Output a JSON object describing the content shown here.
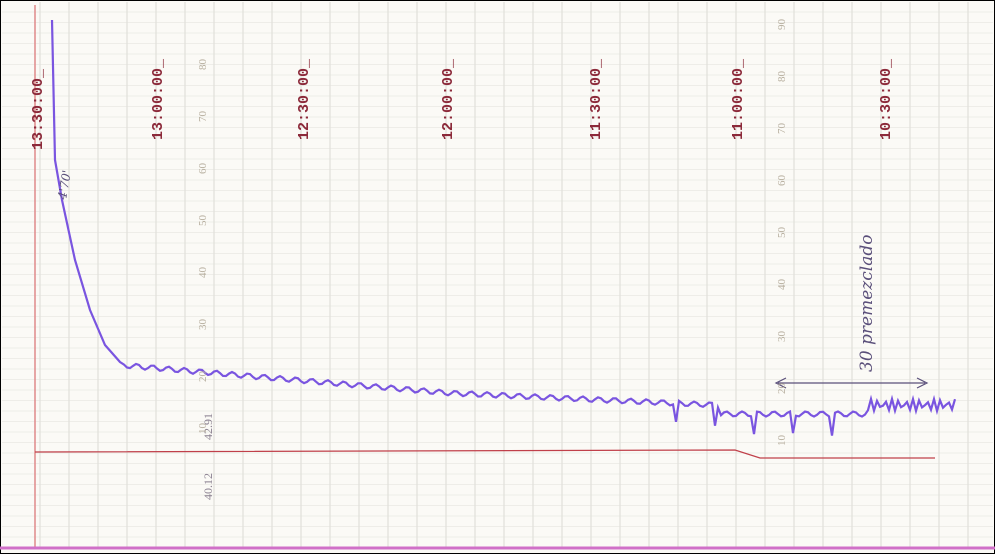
{
  "time_labels": [
    "13:30:00_",
    "13:00:00_",
    "12:30:00_",
    "12:00:00_",
    "11:30:00_",
    "11:00:00_",
    "10:30:00_"
  ],
  "scale_labels": [
    "90",
    "80",
    "70",
    "60",
    "50",
    "40",
    "30",
    "20",
    "10"
  ],
  "annotations": {
    "premixed": "30 premezclado",
    "reading_1": "42.91",
    "reading_2": "40.12",
    "mark": "4'70'"
  }
}
